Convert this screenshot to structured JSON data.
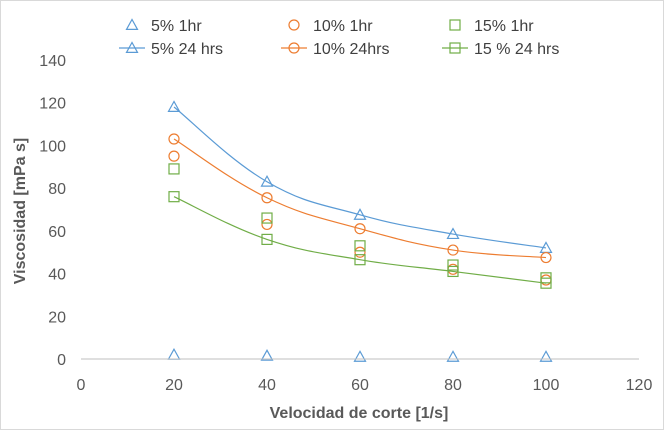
{
  "chart_data": {
    "type": "scatter",
    "xlabel": "Velocidad de corte [1/s]",
    "ylabel": "Viscosidad  [mPa s]",
    "xlim": [
      0,
      120
    ],
    "ylim": [
      0,
      140
    ],
    "xticks": [
      0,
      20,
      40,
      60,
      80,
      100,
      120
    ],
    "yticks": [
      0,
      20,
      40,
      60,
      80,
      100,
      120,
      140
    ],
    "grid": false,
    "legend_position": "top",
    "series": [
      {
        "name": "5% 1hr",
        "color": "#5b9bd5",
        "marker": "triangle",
        "line": false,
        "x": [
          20,
          40,
          60,
          80,
          100
        ],
        "y": [
          2,
          1.5,
          1,
          1,
          1
        ]
      },
      {
        "name": "10% 1hr",
        "color": "#ed7d31",
        "marker": "circle",
        "line": false,
        "x": [
          20,
          40,
          60,
          80,
          100
        ],
        "y": [
          95,
          63,
          50,
          42,
          37
        ]
      },
      {
        "name": "15% 1hr",
        "color": "#70ad47",
        "marker": "square",
        "line": false,
        "x": [
          20,
          40,
          60,
          80,
          100
        ],
        "y": [
          89,
          66,
          53,
          44,
          38
        ]
      },
      {
        "name": "5% 24 hrs",
        "color": "#5b9bd5",
        "marker": "triangle",
        "line": true,
        "x": [
          20,
          40,
          60,
          80,
          100
        ],
        "y": [
          118,
          83,
          67.5,
          58.5,
          52
        ]
      },
      {
        "name": "10% 24hrs",
        "color": "#ed7d31",
        "marker": "circle",
        "line": true,
        "x": [
          20,
          40,
          60,
          80,
          100
        ],
        "y": [
          103,
          75.5,
          61,
          51,
          47.5
        ]
      },
      {
        "name": "15 % 24 hrs",
        "color": "#70ad47",
        "marker": "square",
        "line": true,
        "x": [
          20,
          40,
          60,
          80,
          100
        ],
        "y": [
          76,
          56,
          46.5,
          41,
          35.5
        ]
      }
    ]
  }
}
